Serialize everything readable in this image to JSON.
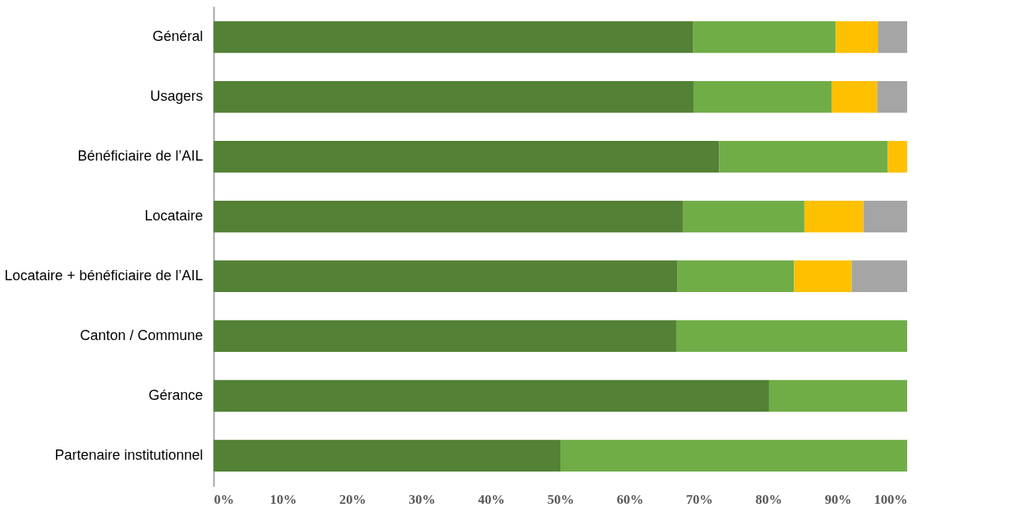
{
  "chart_data": {
    "type": "bar",
    "orientation": "horizontal",
    "stacked": true,
    "categories": [
      "Général",
      "Usagers",
      "Bénéficiaire de l’AIL",
      "Locataire",
      "Locataire + bénéficiaire de l’AIL",
      "Canton / Commune",
      "Gérance",
      "Partenaire institutionnel"
    ],
    "series": [
      {
        "color": "#538135",
        "values": [
          69.1,
          69.2,
          72.9,
          67.7,
          66.9,
          66.7,
          80.1,
          50
        ]
      },
      {
        "color": "#70ad47",
        "values": [
          20.6,
          19.9,
          24.3,
          17.5,
          16.8,
          33.3,
          19.9,
          50
        ]
      },
      {
        "color": "#ffc000",
        "values": [
          6.1,
          6.6,
          2.8,
          8.5,
          8.3,
          null,
          null,
          null
        ]
      },
      {
        "color": "#a5a5a5",
        "values": [
          4.2,
          4.3,
          null,
          6.3,
          8.0,
          null,
          null,
          null
        ]
      }
    ],
    "xlim": [
      0,
      100
    ],
    "xticks": [
      {
        "value": 0,
        "label": "0%"
      },
      {
        "value": 10,
        "label": "10%"
      },
      {
        "value": 20,
        "label": "20%"
      },
      {
        "value": 30,
        "label": "30%"
      },
      {
        "value": 40,
        "label": "40%"
      },
      {
        "value": 50,
        "label": "50%"
      },
      {
        "value": 60,
        "label": "60%"
      },
      {
        "value": 70,
        "label": "70%"
      },
      {
        "value": 80,
        "label": "80%"
      },
      {
        "value": 90,
        "label": "90%"
      },
      {
        "value": 100,
        "label": "100%"
      }
    ],
    "grid": false,
    "legend": false
  }
}
